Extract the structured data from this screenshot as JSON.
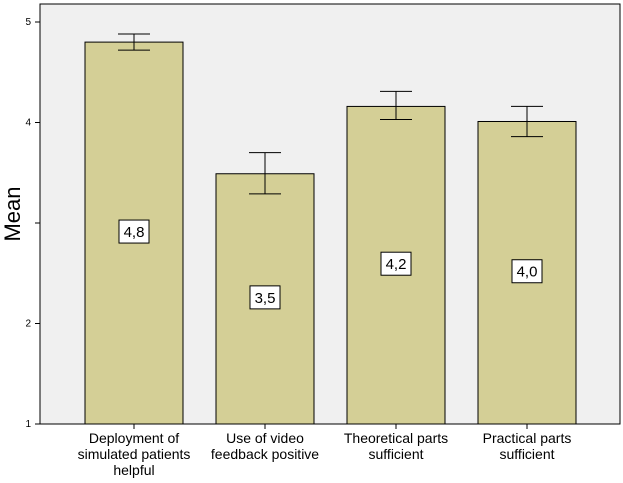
{
  "chart_data": {
    "type": "bar",
    "title": "",
    "xlabel": "",
    "ylabel": "Mean",
    "ylim": [
      1,
      5
    ],
    "yticks": [
      "1",
      "2",
      "",
      "4",
      "5"
    ],
    "grid": false,
    "categories": [
      [
        "Deployment of",
        "simulated patients",
        "helpful"
      ],
      [
        "Use of video",
        "feedback positive"
      ],
      [
        "Theoretical parts",
        "sufficient"
      ],
      [
        "Practical parts",
        "sufficient"
      ]
    ],
    "values": [
      4.8,
      3.49,
      4.16,
      4.01
    ],
    "error_low": [
      4.72,
      3.29,
      4.03,
      3.86
    ],
    "error_high": [
      4.88,
      3.7,
      4.31,
      4.16
    ],
    "data_labels": [
      "4,8",
      "3,5",
      "4,2",
      "4,0"
    ],
    "colors": {
      "bar_fill": "#d4cf96",
      "bar_stroke": "#000000",
      "plot_background": "#f0f0f0"
    }
  }
}
